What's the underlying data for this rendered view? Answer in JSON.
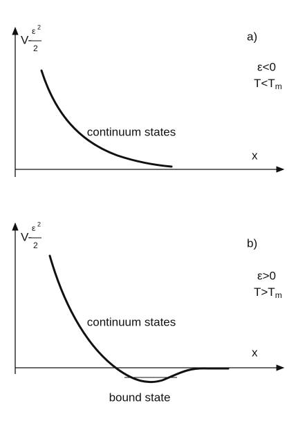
{
  "panels": [
    {
      "label": "a)",
      "y_axis": {
        "prefix": "V-",
        "numerator": "ε",
        "power": "2",
        "denominator": "2"
      },
      "x_axis": "x",
      "condition_eps": "ε<0",
      "condition_T": {
        "base": "T<T",
        "sub": "m"
      },
      "curve_label": "continuum states"
    },
    {
      "label": "b)",
      "y_axis": {
        "prefix": "V-",
        "numerator": "ε",
        "power": "2",
        "denominator": "2"
      },
      "x_axis": "x",
      "condition_eps": "ε>0",
      "condition_T": {
        "base": "T>T",
        "sub": "m"
      },
      "curve_label": "continuum states",
      "bound_label": "bound state"
    }
  ]
}
